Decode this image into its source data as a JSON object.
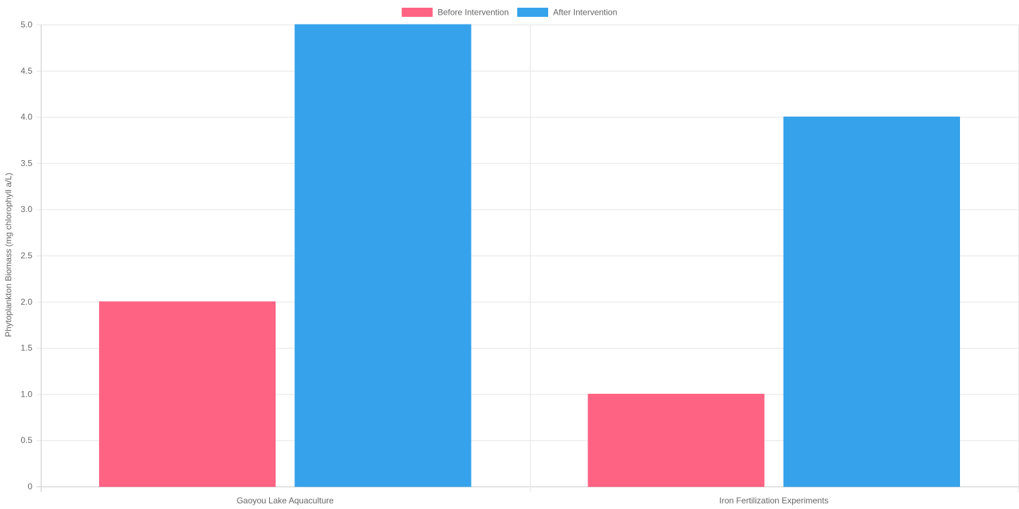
{
  "chart_data": {
    "type": "bar",
    "categories": [
      "Gaoyou Lake Aquaculture",
      "Iron Fertilization Experiments"
    ],
    "series": [
      {
        "name": "Before Intervention",
        "values": [
          2,
          1
        ],
        "color": "#ff6384"
      },
      {
        "name": "After Intervention",
        "values": [
          5,
          4
        ],
        "color": "#36a2eb"
      }
    ],
    "title": "",
    "xlabel": "",
    "ylabel": "Phytoplankton Biomass (mg chlorophyll a/L)",
    "ylim": [
      0,
      5
    ],
    "y_ticks": [
      "0",
      "0.5",
      "1.0",
      "1.5",
      "2.0",
      "2.5",
      "3.0",
      "3.5",
      "4.0",
      "4.5",
      "5.0"
    ],
    "grid": true,
    "legend_position": "top-center"
  }
}
